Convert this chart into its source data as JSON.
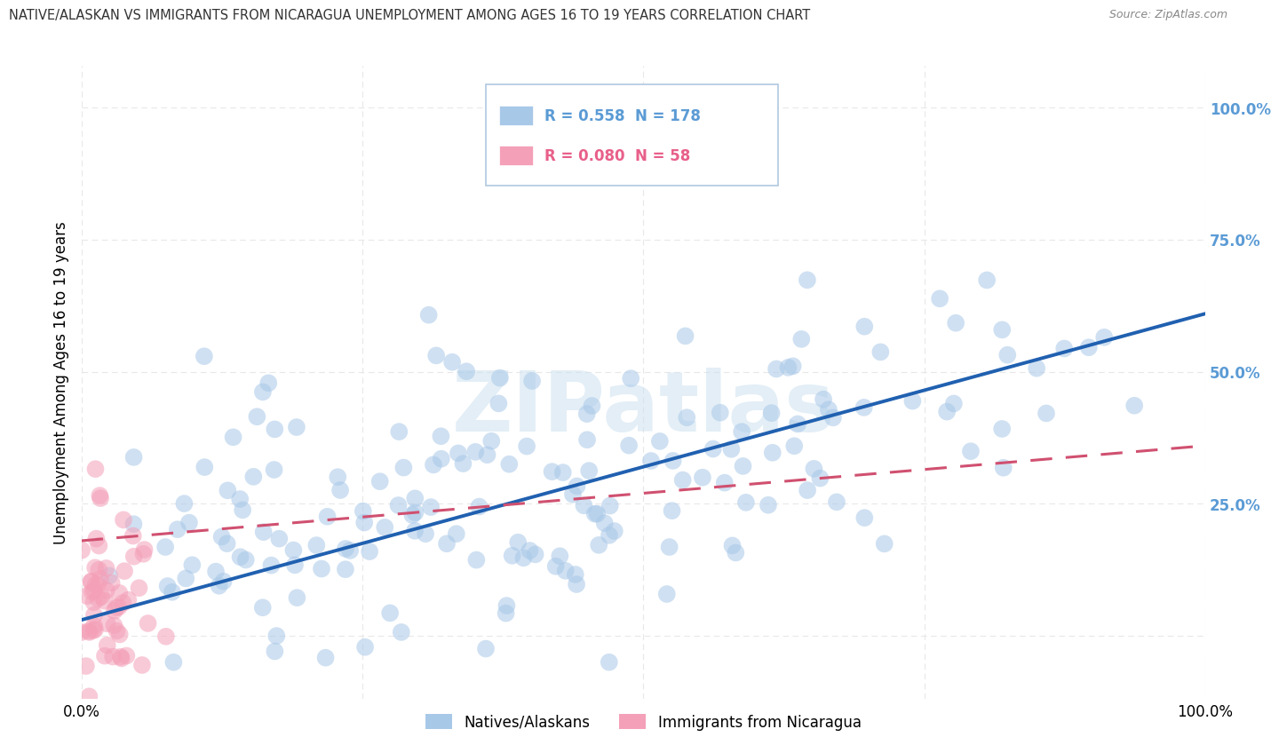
{
  "title": "NATIVE/ALASKAN VS IMMIGRANTS FROM NICARAGUA UNEMPLOYMENT AMONG AGES 16 TO 19 YEARS CORRELATION CHART",
  "source": "Source: ZipAtlas.com",
  "ylabel": "Unemployment Among Ages 16 to 19 years",
  "xlim": [
    0.0,
    1.0
  ],
  "ylim": [
    -0.12,
    1.08
  ],
  "xticks": [
    0.0,
    0.25,
    0.5,
    0.75,
    1.0
  ],
  "xticklabels": [
    "0.0%",
    "",
    "",
    "",
    "100.0%"
  ],
  "ytick_positions": [
    0.0,
    0.25,
    0.5,
    0.75,
    1.0
  ],
  "ytick_labels": [
    "",
    "25.0%",
    "50.0%",
    "75.0%",
    "100.0%"
  ],
  "watermark": "ZIPatlas",
  "legend_entries": [
    {
      "label": "R = 0.558  N = 178",
      "color": "#5b9bd5"
    },
    {
      "label": "R = 0.080  N = 58",
      "color": "#e8608a"
    }
  ],
  "native_R": 0.558,
  "native_N": 178,
  "nicaragua_R": 0.08,
  "nicaragua_N": 58,
  "scatter_color_native": "#a8c8e8",
  "scatter_color_nicaragua": "#f4a0b8",
  "line_color_native": "#2060b0",
  "line_color_nicaragua": "#d05070",
  "background_color": "#ffffff",
  "grid_color": "#e8e8e8",
  "native_slope": 0.58,
  "native_intercept": 0.03,
  "nicaragua_slope": 0.18,
  "nicaragua_intercept": 0.18
}
